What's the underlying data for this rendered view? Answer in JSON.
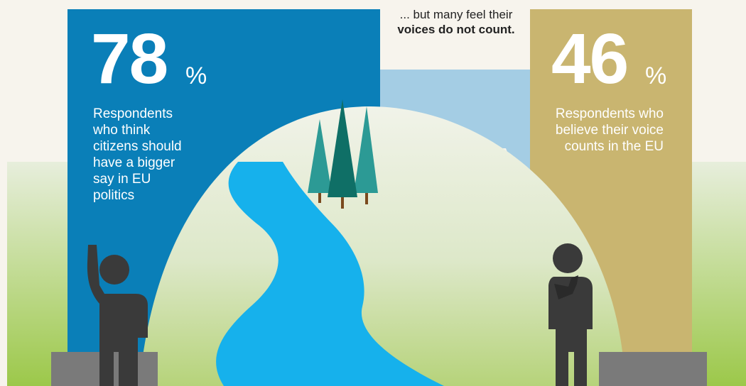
{
  "left_stat": {
    "value": "78",
    "unit": "%",
    "description": "Respondents who think citizens should have a bigger say in EU politics",
    "color": "#0a7fb8"
  },
  "right_stat": {
    "value": "46",
    "unit": "%",
    "description": "Respondents who believe their voice counts in the EU",
    "color": "#c9b570"
  },
  "speech_bubble": {
    "text_plain": "... but many feel their",
    "text_bold": "voices do not count.",
    "color": "#a4cde4"
  },
  "colors": {
    "background": "#f7f4ed",
    "river": "#16b1ec",
    "ground_top": "#e7eedc",
    "ground_bottom": "#9cc84a",
    "trees": [
      "#2c9a95",
      "#0f6f66",
      "#2c9a95"
    ],
    "figures": "#3a3a3a",
    "pedestals": "#7a7a7a"
  },
  "icons": [
    "raised-hand-person-icon",
    "thinking-person-icon",
    "pine-tree-icon"
  ]
}
